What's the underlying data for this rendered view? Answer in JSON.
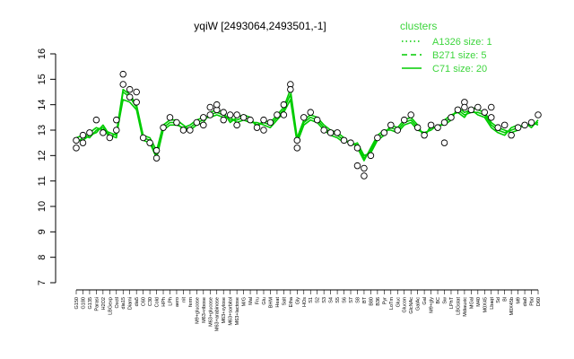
{
  "chart_data": {
    "type": "line",
    "title": "yqiW [2493064,2493501,-1]",
    "xlabel": "",
    "ylabel": "",
    "ylim": [
      7,
      16
    ],
    "yticks": [
      7,
      8,
      9,
      10,
      11,
      12,
      13,
      14,
      15,
      16
    ],
    "grid": false,
    "x_tick_labels": [
      "G150",
      "G180",
      "G135",
      "Parasi",
      "H2O2",
      "LBGexp",
      "Oxctl",
      "dia15",
      "Diami",
      "dia5",
      "C60",
      "C30",
      "Cold",
      "HPh",
      "LPh",
      "aero",
      "nit",
      "ferm",
      "M9+glucose",
      "M63+ribose",
      "M63+glucose",
      "M63+arabinose",
      "M63+xylose",
      "M63+sorbitol",
      "M63+lactose",
      "M/G",
      "Mal",
      "Fru",
      "Glu",
      "BHM",
      "Heat",
      "Salt",
      "Etha",
      "Gly",
      "HOs",
      "S1",
      "S2",
      "S3",
      "S4",
      "S5",
      "S6",
      "S7",
      "S8",
      "BT",
      "B80",
      "B36",
      "Pyr",
      "LoTm",
      "Gluc",
      "Glucon",
      "GlcNAc",
      "GalAc",
      "Gal",
      "M9+gly",
      "BC",
      "Sw",
      "LPhT",
      "LBGstat",
      "Mdiauxic",
      "MGal",
      "M40",
      "M0X45",
      "Lbaqt",
      "Sd",
      "Bl",
      "M0X45b",
      "M9",
      "dia0",
      "Pbd",
      "D60"
    ],
    "series": [
      {
        "values": [
          12.6,
          12.6,
          12.8,
          12.9,
          13.2,
          12.8,
          12.7,
          14.5,
          14.3,
          13.9,
          12.7,
          12.6,
          12.0,
          13.1,
          13.3,
          13.3,
          13.0,
          13.1,
          13.3,
          13.4,
          13.6,
          13.7,
          13.6,
          13.4,
          13.4,
          13.5,
          13.4,
          13.2,
          13.3,
          13.2,
          13.5,
          13.8,
          14.4,
          12.6,
          13.3,
          13.5,
          13.4,
          13.1,
          12.9,
          12.8,
          12.6,
          12.5,
          12.4,
          11.9,
          12.2,
          12.7,
          12.9,
          13.1,
          13.0,
          13.3,
          13.4,
          13.1,
          12.8,
          13.1,
          13.1,
          13.3,
          13.5,
          13.8,
          13.6,
          13.7,
          13.7,
          13.6,
          13.2,
          13.0,
          12.9,
          13.0,
          13.1,
          13.2,
          13.2,
          13.3
        ]
      },
      {
        "values": [
          12.5,
          12.7,
          12.9,
          13.1,
          13.0,
          12.9,
          12.8,
          14.2,
          14.1,
          13.8,
          12.6,
          12.5,
          11.9,
          13.0,
          13.2,
          13.2,
          13.1,
          13.2,
          13.4,
          13.5,
          13.5,
          13.6,
          13.5,
          13.5,
          13.3,
          13.4,
          13.3,
          13.3,
          13.2,
          13.1,
          13.4,
          13.7,
          14.2,
          12.5,
          13.2,
          13.4,
          13.3,
          13.0,
          12.8,
          12.7,
          12.5,
          12.6,
          12.3,
          11.8,
          12.3,
          12.8,
          13.0,
          13.0,
          12.9,
          13.2,
          13.3,
          13.0,
          12.9,
          13.0,
          13.2,
          13.2,
          13.4,
          13.9,
          13.7,
          13.8,
          13.6,
          13.5,
          13.1,
          12.9,
          12.8,
          13.1,
          13.2,
          13.1,
          13.3,
          13.2
        ]
      },
      {
        "values": [
          12.7,
          12.8,
          12.7,
          13.0,
          13.1,
          12.7,
          12.9,
          14.6,
          14.4,
          14.0,
          12.8,
          12.7,
          12.2,
          13.2,
          13.4,
          13.4,
          13.2,
          13.0,
          13.2,
          13.3,
          13.7,
          13.8,
          13.7,
          13.3,
          13.5,
          13.6,
          13.5,
          13.1,
          13.4,
          13.3,
          13.6,
          13.9,
          14.6,
          12.7,
          13.4,
          13.6,
          13.5,
          13.2,
          13.0,
          12.9,
          12.7,
          12.4,
          12.5,
          12.0,
          12.1,
          12.6,
          12.8,
          13.2,
          13.1,
          13.4,
          13.5,
          13.2,
          12.7,
          13.2,
          13.0,
          13.4,
          13.6,
          13.7,
          13.5,
          13.9,
          13.8,
          13.7,
          13.3,
          13.1,
          13.0,
          12.9,
          13.0,
          13.3,
          13.1,
          13.4
        ]
      }
    ],
    "points": [
      {
        "x": 0,
        "y": 12.3
      },
      {
        "x": 0,
        "y": 12.6
      },
      {
        "x": 1,
        "y": 12.5
      },
      {
        "x": 1,
        "y": 12.8
      },
      {
        "x": 2,
        "y": 12.9
      },
      {
        "x": 3,
        "y": 13.4
      },
      {
        "x": 4,
        "y": 12.9
      },
      {
        "x": 5,
        "y": 12.7
      },
      {
        "x": 6,
        "y": 13.0
      },
      {
        "x": 6,
        "y": 13.4
      },
      {
        "x": 7,
        "y": 15.2
      },
      {
        "x": 7,
        "y": 14.8
      },
      {
        "x": 8,
        "y": 14.3
      },
      {
        "x": 8,
        "y": 14.6
      },
      {
        "x": 9,
        "y": 14.5
      },
      {
        "x": 9,
        "y": 14.1
      },
      {
        "x": 10,
        "y": 12.7
      },
      {
        "x": 11,
        "y": 12.5
      },
      {
        "x": 12,
        "y": 12.2
      },
      {
        "x": 12,
        "y": 11.9
      },
      {
        "x": 13,
        "y": 13.1
      },
      {
        "x": 14,
        "y": 13.5
      },
      {
        "x": 15,
        "y": 13.3
      },
      {
        "x": 16,
        "y": 13.0
      },
      {
        "x": 17,
        "y": 13.0
      },
      {
        "x": 18,
        "y": 13.3
      },
      {
        "x": 19,
        "y": 13.5
      },
      {
        "x": 19,
        "y": 13.2
      },
      {
        "x": 20,
        "y": 13.9
      },
      {
        "x": 20,
        "y": 13.6
      },
      {
        "x": 21,
        "y": 13.8
      },
      {
        "x": 21,
        "y": 14.0
      },
      {
        "x": 22,
        "y": 13.7
      },
      {
        "x": 22,
        "y": 13.4
      },
      {
        "x": 23,
        "y": 13.6
      },
      {
        "x": 24,
        "y": 13.6
      },
      {
        "x": 24,
        "y": 13.2
      },
      {
        "x": 25,
        "y": 13.5
      },
      {
        "x": 26,
        "y": 13.4
      },
      {
        "x": 27,
        "y": 13.1
      },
      {
        "x": 28,
        "y": 13.4
      },
      {
        "x": 28,
        "y": 13.0
      },
      {
        "x": 29,
        "y": 13.3
      },
      {
        "x": 30,
        "y": 13.6
      },
      {
        "x": 31,
        "y": 14.0
      },
      {
        "x": 31,
        "y": 13.6
      },
      {
        "x": 32,
        "y": 14.8
      },
      {
        "x": 32,
        "y": 14.6
      },
      {
        "x": 33,
        "y": 12.3
      },
      {
        "x": 33,
        "y": 12.6
      },
      {
        "x": 34,
        "y": 13.5
      },
      {
        "x": 35,
        "y": 13.7
      },
      {
        "x": 36,
        "y": 13.4
      },
      {
        "x": 37,
        "y": 13.0
      },
      {
        "x": 38,
        "y": 12.9
      },
      {
        "x": 39,
        "y": 12.9
      },
      {
        "x": 40,
        "y": 12.6
      },
      {
        "x": 41,
        "y": 12.5
      },
      {
        "x": 42,
        "y": 12.3
      },
      {
        "x": 42,
        "y": 11.6
      },
      {
        "x": 43,
        "y": 11.2
      },
      {
        "x": 43,
        "y": 11.5
      },
      {
        "x": 44,
        "y": 12.0
      },
      {
        "x": 45,
        "y": 12.7
      },
      {
        "x": 46,
        "y": 12.9
      },
      {
        "x": 47,
        "y": 13.2
      },
      {
        "x": 48,
        "y": 13.0
      },
      {
        "x": 49,
        "y": 13.4
      },
      {
        "x": 50,
        "y": 13.6
      },
      {
        "x": 51,
        "y": 13.1
      },
      {
        "x": 52,
        "y": 12.8
      },
      {
        "x": 53,
        "y": 13.2
      },
      {
        "x": 54,
        "y": 13.1
      },
      {
        "x": 55,
        "y": 13.3
      },
      {
        "x": 55,
        "y": 12.5
      },
      {
        "x": 56,
        "y": 13.5
      },
      {
        "x": 57,
        "y": 13.8
      },
      {
        "x": 58,
        "y": 14.1
      },
      {
        "x": 58,
        "y": 13.9
      },
      {
        "x": 59,
        "y": 13.8
      },
      {
        "x": 60,
        "y": 13.9
      },
      {
        "x": 61,
        "y": 13.7
      },
      {
        "x": 62,
        "y": 13.9
      },
      {
        "x": 62,
        "y": 13.5
      },
      {
        "x": 63,
        "y": 13.1
      },
      {
        "x": 64,
        "y": 13.2
      },
      {
        "x": 65,
        "y": 12.8
      },
      {
        "x": 66,
        "y": 13.1
      },
      {
        "x": 67,
        "y": 13.2
      },
      {
        "x": 68,
        "y": 13.3
      },
      {
        "x": 69,
        "y": 13.6
      }
    ],
    "legend": {
      "title": "clusters",
      "placement": "top-right",
      "entries": [
        {
          "label": "A1326 size: 1",
          "style": "dotted"
        },
        {
          "label": "B271 size: 5",
          "style": "dashed"
        },
        {
          "label": "C71 size: 20",
          "style": "solid"
        }
      ]
    },
    "colors": {
      "line": "#00cc00",
      "legend_text": "#3dd53d",
      "points_fill": "#ffffff",
      "points_stroke": "#000000"
    }
  }
}
